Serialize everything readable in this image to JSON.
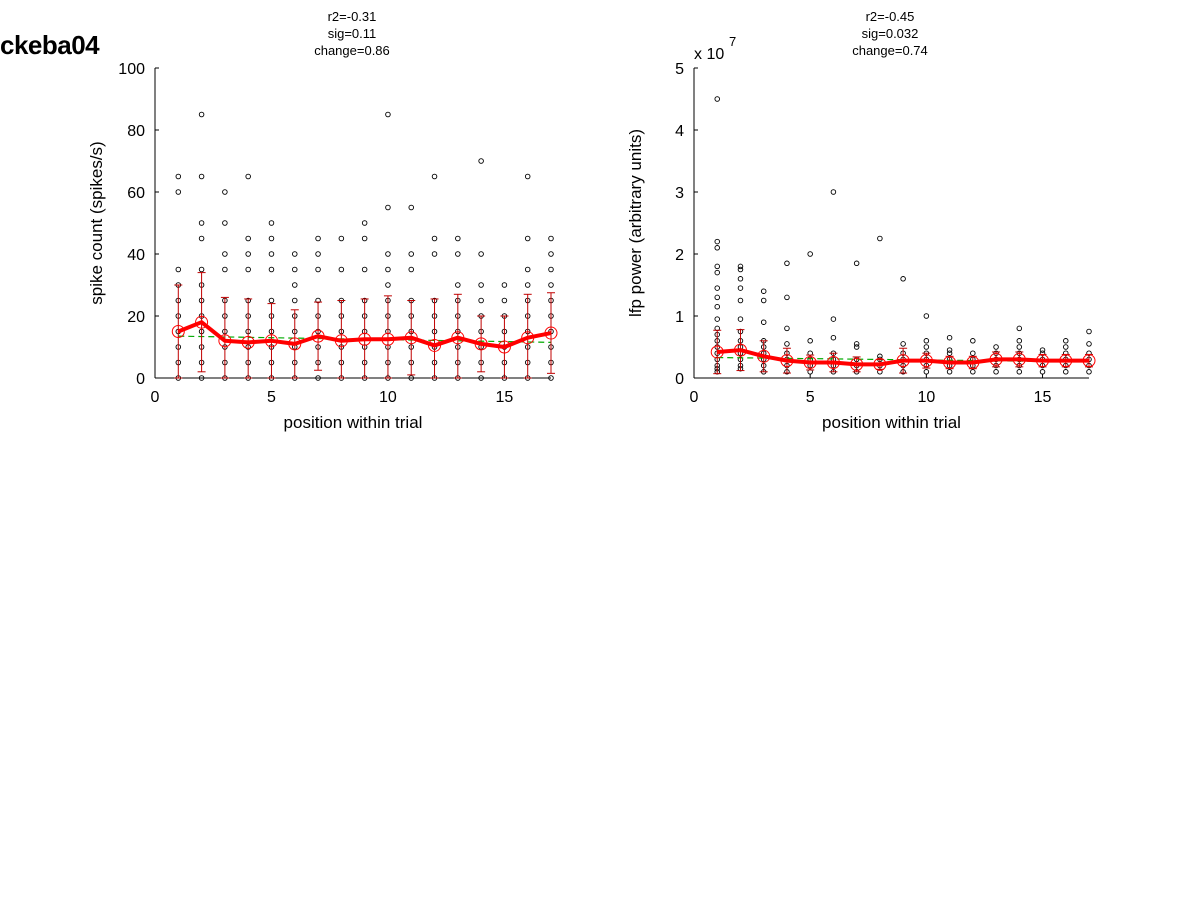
{
  "figure_title": "ckeba04",
  "chart_data": [
    {
      "type": "scatter",
      "stats": [
        "r2=-0.31",
        "sig=0.11",
        "change=0.86"
      ],
      "xlabel": "position within trial",
      "ylabel": "spike count (spikes/s)",
      "xlim": [
        0,
        17
      ],
      "ylim": [
        0,
        100
      ],
      "xticks": [
        0,
        5,
        10,
        15
      ],
      "yticks": [
        0,
        20,
        40,
        60,
        80,
        100
      ],
      "exponent_label": "",
      "colors": {
        "points": "#000000",
        "mean": "#ff0000",
        "errorbar": "#c00000",
        "fit": "#00aa00"
      },
      "points": [
        [
          1,
          [
            0,
            5,
            10,
            15,
            20,
            25,
            30,
            35,
            60,
            65
          ]
        ],
        [
          2,
          [
            0,
            5,
            10,
            15,
            20,
            25,
            30,
            35,
            45,
            50,
            65,
            85
          ]
        ],
        [
          3,
          [
            0,
            5,
            10,
            15,
            20,
            25,
            35,
            40,
            50,
            60
          ]
        ],
        [
          4,
          [
            0,
            5,
            10,
            15,
            20,
            25,
            35,
            40,
            45,
            65
          ]
        ],
        [
          5,
          [
            0,
            5,
            10,
            15,
            20,
            25,
            35,
            40,
            45,
            50
          ]
        ],
        [
          6,
          [
            0,
            5,
            10,
            15,
            20,
            25,
            30,
            35,
            40
          ]
        ],
        [
          7,
          [
            0,
            5,
            10,
            15,
            20,
            25,
            35,
            40,
            45
          ]
        ],
        [
          8,
          [
            0,
            5,
            10,
            15,
            20,
            25,
            35,
            45
          ]
        ],
        [
          9,
          [
            0,
            5,
            10,
            15,
            20,
            25,
            35,
            45,
            50
          ]
        ],
        [
          10,
          [
            0,
            5,
            10,
            15,
            20,
            25,
            30,
            35,
            40,
            55,
            85
          ]
        ],
        [
          11,
          [
            0,
            5,
            10,
            15,
            20,
            25,
            35,
            40,
            55
          ]
        ],
        [
          12,
          [
            0,
            5,
            10,
            15,
            20,
            25,
            40,
            45,
            65
          ]
        ],
        [
          13,
          [
            0,
            5,
            10,
            15,
            20,
            25,
            30,
            40,
            45
          ]
        ],
        [
          14,
          [
            0,
            5,
            10,
            15,
            20,
            25,
            30,
            40,
            70
          ]
        ],
        [
          15,
          [
            0,
            5,
            10,
            15,
            20,
            25,
            30
          ]
        ],
        [
          16,
          [
            0,
            5,
            10,
            15,
            20,
            25,
            30,
            35,
            45,
            65
          ]
        ],
        [
          17,
          [
            0,
            5,
            10,
            15,
            20,
            25,
            30,
            35,
            40,
            45
          ]
        ]
      ],
      "mean": {
        "x": [
          1,
          2,
          3,
          4,
          5,
          6,
          7,
          8,
          9,
          10,
          11,
          12,
          13,
          14,
          15,
          16,
          17
        ],
        "y": [
          15,
          18,
          12,
          11.5,
          12,
          11,
          13.5,
          12,
          12.5,
          12.5,
          13,
          10.5,
          13,
          11,
          10,
          13,
          14.5
        ],
        "err": [
          15,
          16,
          14,
          14,
          12,
          11,
          11,
          13,
          13,
          14,
          12,
          15,
          14,
          9,
          10,
          14,
          13
        ]
      },
      "fit": {
        "x": [
          1,
          17
        ],
        "y": [
          13.5,
          11.5
        ]
      }
    },
    {
      "type": "scatter",
      "stats": [
        "r2=-0.45",
        "sig=0.032",
        "change=0.74"
      ],
      "xlabel": "position within trial",
      "ylabel": "lfp power (arbitrary units)",
      "xlim": [
        0,
        17
      ],
      "ylim": [
        0,
        5
      ],
      "xticks": [
        0,
        5,
        10,
        15
      ],
      "yticks": [
        0,
        1,
        2,
        3,
        4,
        5
      ],
      "exponent_label": "x 10",
      "exponent_power": "7",
      "colors": {
        "points": "#000000",
        "mean": "#ff0000",
        "errorbar": "#c00000",
        "fit": "#00aa00"
      },
      "points": [
        [
          1,
          [
            0.1,
            0.15,
            0.2,
            0.3,
            0.4,
            0.5,
            0.6,
            0.7,
            0.8,
            0.95,
            1.15,
            1.3,
            1.45,
            1.7,
            1.8,
            2.1,
            2.2,
            4.5
          ]
        ],
        [
          2,
          [
            0.15,
            0.2,
            0.3,
            0.4,
            0.5,
            0.6,
            0.75,
            0.95,
            1.25,
            1.45,
            1.6,
            1.75,
            1.8
          ]
        ],
        [
          3,
          [
            0.1,
            0.2,
            0.3,
            0.4,
            0.5,
            0.6,
            0.9,
            1.25,
            1.4
          ]
        ],
        [
          4,
          [
            0.1,
            0.2,
            0.3,
            0.4,
            0.55,
            0.8,
            1.3,
            1.85
          ]
        ],
        [
          5,
          [
            0.1,
            0.2,
            0.3,
            0.4,
            0.6,
            2.0
          ]
        ],
        [
          6,
          [
            0.1,
            0.2,
            0.3,
            0.4,
            0.65,
            0.95,
            3.0
          ]
        ],
        [
          7,
          [
            0.1,
            0.2,
            0.3,
            0.5,
            0.55,
            1.85
          ]
        ],
        [
          8,
          [
            0.1,
            0.2,
            0.3,
            0.35,
            2.25
          ]
        ],
        [
          9,
          [
            0.1,
            0.2,
            0.3,
            0.4,
            0.55,
            1.6
          ]
        ],
        [
          10,
          [
            0.1,
            0.2,
            0.3,
            0.4,
            0.5,
            0.6,
            1.0
          ]
        ],
        [
          11,
          [
            0.1,
            0.2,
            0.3,
            0.4,
            0.45,
            0.65
          ]
        ],
        [
          12,
          [
            0.1,
            0.2,
            0.3,
            0.4,
            0.6
          ]
        ],
        [
          13,
          [
            0.1,
            0.2,
            0.3,
            0.4,
            0.5
          ]
        ],
        [
          14,
          [
            0.1,
            0.2,
            0.3,
            0.4,
            0.5,
            0.6,
            0.8
          ]
        ],
        [
          15,
          [
            0.1,
            0.2,
            0.3,
            0.4,
            0.45
          ]
        ],
        [
          16,
          [
            0.1,
            0.2,
            0.3,
            0.4,
            0.5,
            0.6
          ]
        ],
        [
          17,
          [
            0.1,
            0.2,
            0.3,
            0.4,
            0.55,
            0.75
          ]
        ]
      ],
      "mean": {
        "x": [
          1,
          2,
          3,
          4,
          5,
          6,
          7,
          8,
          9,
          10,
          11,
          12,
          13,
          14,
          15,
          16,
          17
        ],
        "y": [
          0.42,
          0.45,
          0.35,
          0.28,
          0.25,
          0.25,
          0.22,
          0.22,
          0.28,
          0.28,
          0.25,
          0.25,
          0.3,
          0.3,
          0.28,
          0.28,
          0.28
        ],
        "err": [
          0.35,
          0.33,
          0.25,
          0.2,
          0.12,
          0.15,
          0.12,
          0.08,
          0.2,
          0.12,
          0.1,
          0.1,
          0.12,
          0.12,
          0.1,
          0.1,
          0.1
        ]
      },
      "fit": {
        "x": [
          1,
          17
        ],
        "y": [
          0.33,
          0.26
        ]
      }
    }
  ]
}
